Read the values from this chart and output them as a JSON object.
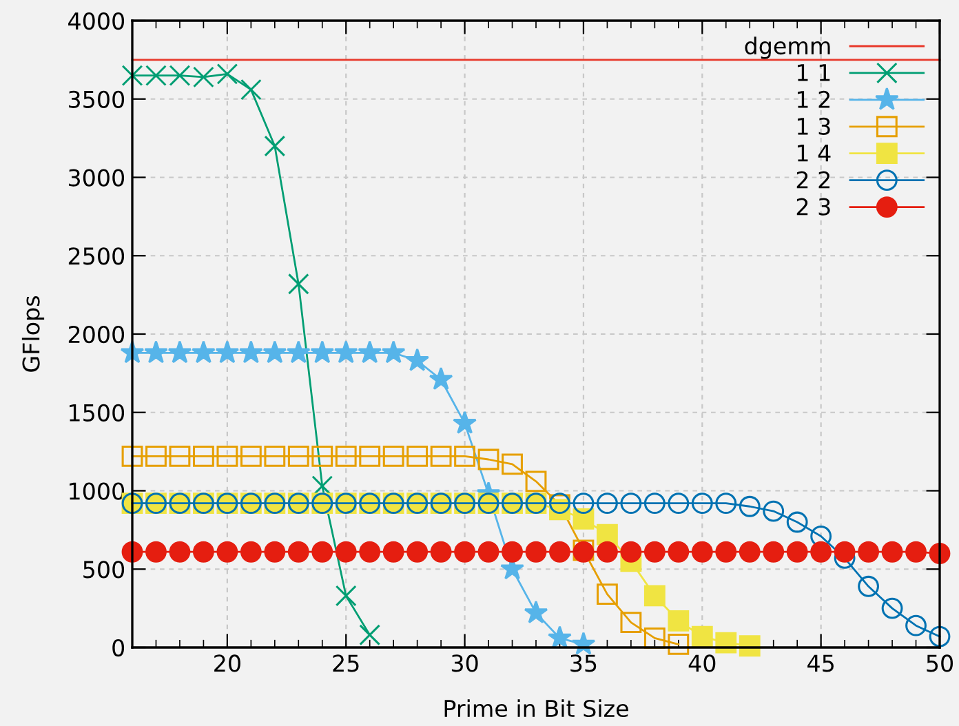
{
  "chart_data": {
    "type": "line",
    "xlabel": "Prime in Bit Size",
    "ylabel": "GFlops",
    "xlim": [
      16,
      50
    ],
    "xticks": [
      20,
      25,
      30,
      35,
      40,
      45,
      50
    ],
    "ylim": [
      0,
      4000
    ],
    "yticks": [
      0,
      500,
      1000,
      1500,
      2000,
      2500,
      3000,
      3500,
      4000
    ],
    "grid": true,
    "legend": "top right",
    "series": [
      {
        "name": "dgemm",
        "color": "#e8392b",
        "marker": "none",
        "x": [
          16,
          50
        ],
        "values": [
          3750,
          3750
        ]
      },
      {
        "name": "1 1",
        "color": "#009e73",
        "marker": "cross",
        "x": [
          16,
          17,
          18,
          19,
          20,
          21,
          22,
          23,
          24,
          25,
          26
        ],
        "values": [
          3650,
          3650,
          3650,
          3640,
          3660,
          3560,
          3200,
          2320,
          1030,
          330,
          80
        ]
      },
      {
        "name": "1 2",
        "color": "#56b4e9",
        "marker": "star",
        "x": [
          16,
          17,
          18,
          19,
          20,
          21,
          22,
          23,
          24,
          25,
          26,
          27,
          28,
          29,
          30,
          31,
          32,
          33,
          34,
          35
        ],
        "values": [
          1880,
          1880,
          1880,
          1880,
          1880,
          1880,
          1880,
          1880,
          1880,
          1880,
          1880,
          1880,
          1830,
          1710,
          1430,
          980,
          500,
          220,
          60,
          20
        ]
      },
      {
        "name": "1 3",
        "color": "#e69f00",
        "marker": "square",
        "x": [
          16,
          17,
          18,
          19,
          20,
          21,
          22,
          23,
          24,
          25,
          26,
          27,
          28,
          29,
          30,
          31,
          32,
          33,
          34,
          35,
          36,
          37,
          38,
          39
        ],
        "values": [
          1220,
          1220,
          1220,
          1220,
          1220,
          1220,
          1220,
          1220,
          1220,
          1220,
          1220,
          1220,
          1220,
          1220,
          1220,
          1200,
          1170,
          1060,
          910,
          620,
          340,
          160,
          60,
          20
        ]
      },
      {
        "name": "1 4",
        "color": "#f0e442",
        "marker": "square",
        "x": [
          16,
          17,
          18,
          19,
          20,
          21,
          22,
          23,
          24,
          25,
          26,
          27,
          28,
          29,
          30,
          31,
          32,
          33,
          34,
          35,
          36,
          37,
          38,
          39,
          40,
          41,
          42
        ],
        "values": [
          920,
          920,
          920,
          920,
          920,
          920,
          920,
          920,
          920,
          920,
          920,
          920,
          920,
          920,
          920,
          920,
          920,
          920,
          880,
          820,
          720,
          550,
          330,
          170,
          70,
          30,
          10
        ]
      },
      {
        "name": "2 2",
        "color": "#0072b2",
        "marker": "circle",
        "x": [
          16,
          17,
          18,
          19,
          20,
          21,
          22,
          23,
          24,
          25,
          26,
          27,
          28,
          29,
          30,
          31,
          32,
          33,
          34,
          35,
          36,
          37,
          38,
          39,
          40,
          41,
          42,
          43,
          44,
          45,
          46,
          47,
          48,
          49,
          50
        ],
        "values": [
          920,
          920,
          920,
          920,
          920,
          920,
          920,
          920,
          920,
          920,
          920,
          920,
          920,
          920,
          920,
          920,
          920,
          920,
          920,
          920,
          920,
          920,
          920,
          920,
          920,
          920,
          900,
          870,
          800,
          710,
          570,
          390,
          250,
          140,
          70
        ]
      },
      {
        "name": "2 3",
        "color": "#e51e10",
        "marker": "circle",
        "x": [
          16,
          17,
          18,
          19,
          20,
          21,
          22,
          23,
          24,
          25,
          26,
          27,
          28,
          29,
          30,
          31,
          32,
          33,
          34,
          35,
          36,
          37,
          38,
          39,
          40,
          41,
          42,
          43,
          44,
          45,
          46,
          47,
          48,
          49,
          50
        ],
        "values": [
          610,
          610,
          610,
          610,
          610,
          610,
          610,
          610,
          610,
          610,
          610,
          610,
          610,
          610,
          610,
          610,
          610,
          610,
          610,
          610,
          610,
          610,
          610,
          610,
          610,
          610,
          610,
          610,
          610,
          610,
          610,
          610,
          610,
          610,
          600
        ]
      }
    ]
  }
}
